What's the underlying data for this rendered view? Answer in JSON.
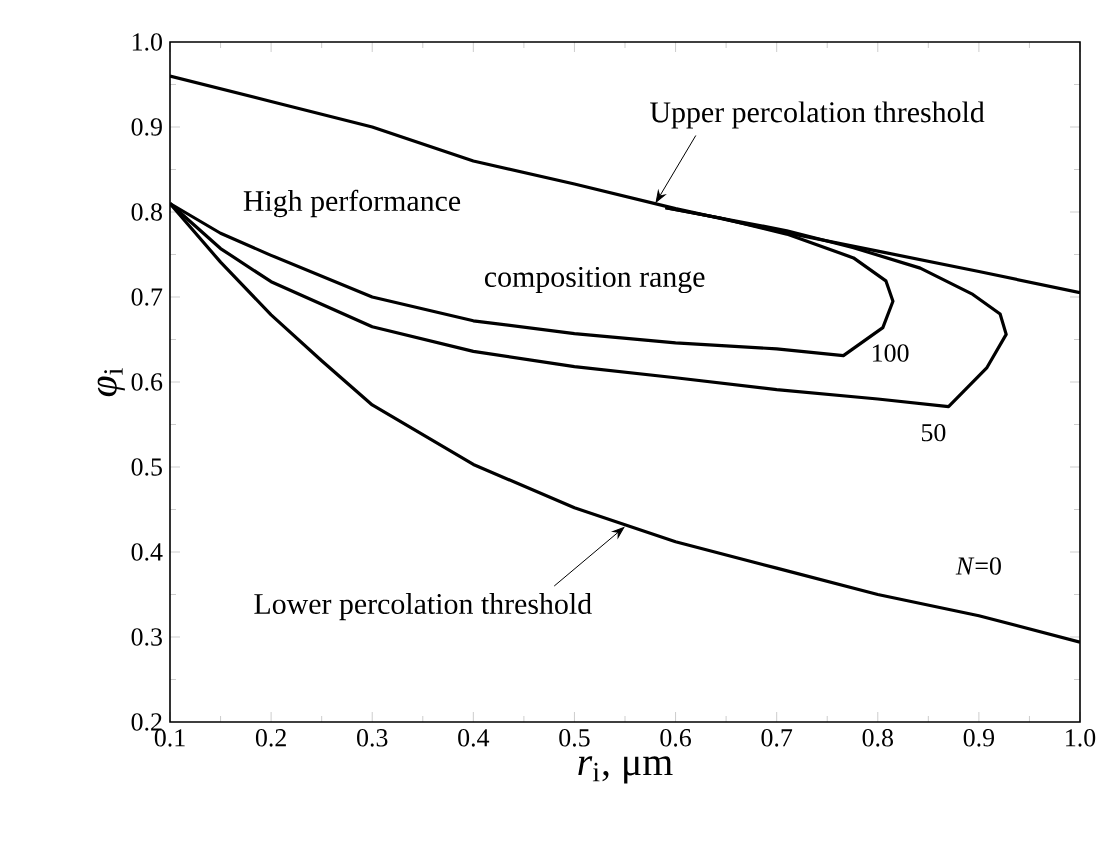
{
  "chart_data": {
    "type": "line",
    "xlabel": "*r*$_{i}$, μm",
    "ylabel": "*φ*$_{i}$",
    "xlim": [
      0.1,
      1.0
    ],
    "ylim": [
      0.2,
      1.0
    ],
    "xticks": [
      {
        "value": 0.1,
        "label": "0.1"
      },
      {
        "value": 0.2,
        "label": "0.2"
      },
      {
        "value": 0.3,
        "label": "0.3"
      },
      {
        "value": 0.4,
        "label": "0.4"
      },
      {
        "value": 0.5,
        "label": "0.5"
      },
      {
        "value": 0.6,
        "label": "0.6"
      },
      {
        "value": 0.7,
        "label": "0.7"
      },
      {
        "value": 0.8,
        "label": "0.8"
      },
      {
        "value": 0.9,
        "label": "0.9"
      },
      {
        "value": 1.0,
        "label": "1.0"
      }
    ],
    "yticks": [
      {
        "value": 0.2,
        "label": "0.2"
      },
      {
        "value": 0.3,
        "label": "0.3"
      },
      {
        "value": 0.4,
        "label": "0.4"
      },
      {
        "value": 0.5,
        "label": "0.5"
      },
      {
        "value": 0.6,
        "label": "0.6"
      },
      {
        "value": 0.7,
        "label": "0.7"
      },
      {
        "value": 0.8,
        "label": "0.8"
      },
      {
        "value": 0.9,
        "label": "0.9"
      },
      {
        "value": 1.0,
        "label": "1.0"
      }
    ],
    "grid": false,
    "legend": false,
    "marker": "none",
    "line_style": "solid",
    "series": [
      {
        "color": "#000000",
        "x": [
          0.1,
          0.2,
          0.3,
          0.4,
          0.5,
          0.6,
          0.7,
          0.8,
          0.9,
          1.0
        ],
        "values": [
          0.96,
          0.93,
          0.9,
          0.86,
          0.833,
          0.804,
          0.778,
          0.754,
          0.73,
          0.705
        ]
      },
      {
        "name": "100",
        "color": "#000000",
        "x": [
          0.1,
          0.15,
          0.2,
          0.3,
          0.4,
          0.5,
          0.6,
          0.7,
          0.766,
          0.805,
          0.815,
          0.808,
          0.776,
          0.71,
          0.644,
          0.59
        ],
        "values": [
          0.81,
          0.775,
          0.749,
          0.7,
          0.672,
          0.657,
          0.646,
          0.639,
          0.631,
          0.664,
          0.695,
          0.719,
          0.746,
          0.774,
          0.793,
          0.805
        ]
      },
      {
        "name": "50",
        "color": "#000000",
        "x": [
          0.1,
          0.15,
          0.2,
          0.3,
          0.4,
          0.5,
          0.6,
          0.7,
          0.8,
          0.87,
          0.908,
          0.927,
          0.921,
          0.894,
          0.842,
          0.776,
          0.71,
          0.644,
          0.59
        ],
        "values": [
          0.81,
          0.757,
          0.718,
          0.665,
          0.636,
          0.618,
          0.605,
          0.591,
          0.58,
          0.571,
          0.617,
          0.656,
          0.68,
          0.703,
          0.734,
          0.758,
          0.778,
          0.793,
          0.805
        ]
      },
      {
        "name": "*N*=0",
        "color": "#000000",
        "x": [
          0.1,
          0.15,
          0.2,
          0.25,
          0.3,
          0.4,
          0.5,
          0.6,
          0.7,
          0.8,
          0.9,
          1.0
        ],
        "values": [
          0.81,
          0.741,
          0.679,
          0.625,
          0.573,
          0.503,
          0.452,
          0.412,
          0.381,
          0.35,
          0.325,
          0.294
        ]
      }
    ],
    "annotations": [
      {
        "text": "Upper percolation threshold",
        "x": 0.58,
        "y": 0.81
      },
      {
        "text": "Lower percolation threshold",
        "x": 0.55,
        "y": 0.43
      },
      "High performance",
      "composition range"
    ]
  }
}
